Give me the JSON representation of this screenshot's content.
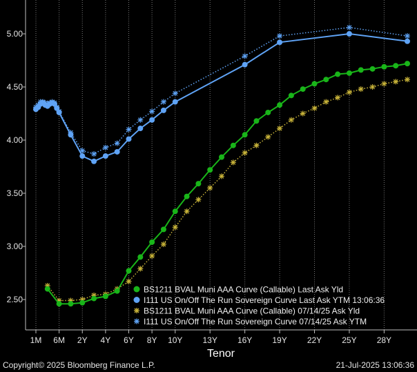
{
  "chart_data": {
    "type": "line",
    "xlabel": "Tenor",
    "ylabel": "",
    "ylim": [
      2.25,
      5.3
    ],
    "xlim": [
      0,
      33
    ],
    "yticks": [
      "2.50",
      "3.00",
      "3.50",
      "4.00",
      "4.50",
      "5.00"
    ],
    "ytick_values": [
      2.5,
      3.0,
      3.5,
      4.0,
      4.5,
      5.0
    ],
    "xticks": [
      "1M",
      "6M",
      "2Y",
      "4Y",
      "6Y",
      "8Y",
      "10Y",
      "13Y",
      "16Y",
      "19Y",
      "22Y",
      "25Y",
      "28Y"
    ],
    "xtick_values": [
      1,
      3,
      5,
      7,
      9,
      11,
      13,
      16,
      19,
      22,
      25,
      28,
      31
    ],
    "grid": "vertical dotted",
    "legend_position": "bottom-right",
    "series": [
      {
        "name": "BS1211 BVAL Muni AAA Curve (Callable) Last Ask Yld",
        "color": "#19b519",
        "style": "solid",
        "marker": "circle",
        "x": [
          2,
          3,
          4,
          5,
          6,
          7,
          8,
          9,
          10,
          11,
          12,
          13,
          14,
          15,
          16,
          17,
          18,
          19,
          20,
          21,
          22,
          23,
          24,
          25,
          26,
          27,
          28,
          29,
          30,
          31,
          32,
          33
        ],
        "y": [
          2.6,
          2.46,
          2.46,
          2.47,
          2.51,
          2.53,
          2.58,
          2.77,
          2.9,
          3.04,
          3.16,
          3.33,
          3.47,
          3.59,
          3.72,
          3.84,
          3.95,
          4.05,
          4.18,
          4.26,
          4.33,
          4.42,
          4.48,
          4.53,
          4.57,
          4.62,
          4.63,
          4.66,
          4.67,
          4.69,
          4.7,
          4.72
        ]
      },
      {
        "name": "I111 US On/Off The Run Sovereign Curve Last Ask YTM 13:06:36",
        "color": "#5fa3f5",
        "style": "solid",
        "marker": "circle",
        "x": [
          1,
          1.2,
          1.4,
          1.6,
          1.8,
          2.0,
          2.2,
          2.4,
          2.6,
          2.8,
          3,
          4,
          5,
          6,
          7,
          8,
          9,
          10,
          11,
          12,
          13,
          19,
          22,
          28,
          33
        ],
        "y": [
          4.29,
          4.31,
          4.34,
          4.35,
          4.33,
          4.32,
          4.34,
          4.35,
          4.34,
          4.3,
          4.26,
          4.05,
          3.85,
          3.8,
          3.85,
          3.89,
          4.01,
          4.11,
          4.19,
          4.28,
          4.36,
          4.71,
          4.92,
          5.0,
          4.93
        ]
      },
      {
        "name": "BS1211 BVAL Muni AAA Curve (Callable) 07/14/25 Ask Yld",
        "color": "#c9b43a",
        "style": "dotted",
        "marker": "asterisk",
        "x": [
          2,
          3,
          4,
          5,
          6,
          7,
          8,
          9,
          10,
          11,
          12,
          13,
          14,
          15,
          16,
          17,
          18,
          19,
          20,
          21,
          22,
          23,
          24,
          25,
          26,
          27,
          28,
          29,
          30,
          31,
          32,
          33
        ],
        "y": [
          2.63,
          2.49,
          2.49,
          2.5,
          2.54,
          2.55,
          2.6,
          2.67,
          2.79,
          2.91,
          3.02,
          3.18,
          3.33,
          3.44,
          3.55,
          3.66,
          3.79,
          3.88,
          3.95,
          4.03,
          4.11,
          4.19,
          4.25,
          4.3,
          4.36,
          4.4,
          4.45,
          4.48,
          4.5,
          4.53,
          4.55,
          4.57
        ]
      },
      {
        "name": "I111 US On/Off The Run Sovereign Curve 07/14/25 Ask YTM",
        "color": "#5fa3f5",
        "style": "dotted",
        "marker": "asterisk",
        "x": [
          1,
          1.2,
          1.4,
          1.6,
          1.8,
          2.0,
          2.2,
          2.4,
          2.6,
          2.8,
          3,
          4,
          5,
          6,
          7,
          8,
          9,
          10,
          11,
          12,
          13,
          19,
          22,
          28,
          33
        ],
        "y": [
          4.31,
          4.33,
          4.36,
          4.36,
          4.35,
          4.34,
          4.35,
          4.36,
          4.35,
          4.31,
          4.27,
          4.07,
          3.9,
          3.87,
          3.93,
          3.97,
          4.1,
          4.19,
          4.27,
          4.36,
          4.44,
          4.79,
          4.98,
          5.06,
          4.98
        ]
      }
    ]
  },
  "footer": {
    "copyright": "Copyright© 2025 Bloomberg Finance L.P.",
    "timestamp": "21-Jul-2025 13:06:36"
  }
}
